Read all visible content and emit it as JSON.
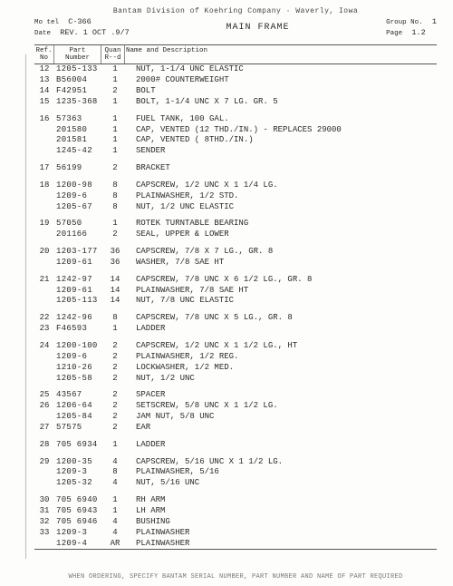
{
  "document": {
    "banner": "Bantam   Division of Koehring Company  ·  Waverly, Iowa",
    "model_label": "Mo tel",
    "model": "C-366",
    "date_label": "Date",
    "date": "REV. 1 OCT  .9/7",
    "title": "MAIN FRAME",
    "group_no_label": "Group No.",
    "group_no": "1",
    "page_label": "Page",
    "page": "1.2"
  },
  "columns": {
    "ref": "Ref.\nNo",
    "part": "Part\nNumber",
    "qty": "Quan\nR--d",
    "desc": "Name and Description"
  },
  "groups": [
    [
      {
        "ref": "12",
        "part": "1205-133",
        "qty": "1",
        "desc": "Nut, 1-1/4 UNC elastic"
      },
      {
        "ref": "13",
        "part": "B56004",
        "qty": "1",
        "desc": "2000# Counterweight"
      },
      {
        "ref": "14",
        "part": "F42951",
        "qty": "2",
        "desc": "Bolt"
      },
      {
        "ref": "15",
        "part": "1235-368",
        "qty": "1",
        "desc": "Bolt, 1-1/4 UNC x 7 lg. Gr. 5"
      }
    ],
    [
      {
        "ref": "16",
        "part": "57363",
        "qty": "1",
        "desc": "Fuel tank, 100 gal."
      },
      {
        "ref": "",
        "part": "201580",
        "qty": "1",
        "desc": "  Cap, vented (12 thd./in.) - Replaces 29000"
      },
      {
        "ref": "",
        "part": "201581",
        "qty": "1",
        "desc": "  Cap, vented ( 8thd./in.)"
      },
      {
        "ref": "",
        "part": "1245-42",
        "qty": "1",
        "desc": "  Sender"
      }
    ],
    [
      {
        "ref": "17",
        "part": "56199",
        "qty": "2",
        "desc": "Bracket"
      }
    ],
    [
      {
        "ref": "18",
        "part": "1200-98",
        "qty": "8",
        "desc": "Capscrew, 1/2 UNC x 1 1/4 lg."
      },
      {
        "ref": "",
        "part": "1209-6",
        "qty": "8",
        "desc": "Plainwasher, 1/2 std."
      },
      {
        "ref": "",
        "part": "1205-67",
        "qty": "8",
        "desc": "Nut, 1/2 UNC elastic"
      }
    ],
    [
      {
        "ref": "19",
        "part": "57050",
        "qty": "1",
        "desc": "Rotek turntable bearing"
      },
      {
        "ref": "",
        "part": "201166",
        "qty": "2",
        "desc": "  Seal, upper & lower"
      }
    ],
    [
      {
        "ref": "20",
        "part": "1203-177",
        "qty": "36",
        "desc": "Capscrew, 7/8 x 7 lg., Gr. 8"
      },
      {
        "ref": "",
        "part": "1209-61",
        "qty": "36",
        "desc": "Washer, 7/8 SAE HT"
      }
    ],
    [
      {
        "ref": "21",
        "part": "1242-97",
        "qty": "14",
        "desc": "Capscrew, 7/8 UNC x 6 1/2 lg., Gr. 8"
      },
      {
        "ref": "",
        "part": "1209-61",
        "qty": "14",
        "desc": "Plainwasher, 7/8 SAE HT"
      },
      {
        "ref": "",
        "part": "1205-113",
        "qty": "14",
        "desc": "Nut, 7/8 UNC elastic"
      }
    ],
    [
      {
        "ref": "22",
        "part": "1242-96",
        "qty": "8",
        "desc": "Capscrew, 7/8 UNC x 5 lg., Gr. 8"
      },
      {
        "ref": "23",
        "part": "F46593",
        "qty": "1",
        "desc": "Ladder"
      }
    ],
    [
      {
        "ref": "24",
        "part": "1200-100",
        "qty": "2",
        "desc": "Capscrew, 1/2 UNC x 1 1/2 lg., HT"
      },
      {
        "ref": "",
        "part": "1209-6",
        "qty": "2",
        "desc": "Plainwasher, 1/2 reg."
      },
      {
        "ref": "",
        "part": "1210-26",
        "qty": "2",
        "desc": "Lockwasher, 1/2 med."
      },
      {
        "ref": "",
        "part": "1205-58",
        "qty": "2",
        "desc": "Nut, 1/2 UNC"
      }
    ],
    [
      {
        "ref": "25",
        "part": "43567",
        "qty": "2",
        "desc": "Spacer"
      },
      {
        "ref": "26",
        "part": "1206-64",
        "qty": "2",
        "desc": "Setscrew, 5/8 UNC x 1 1/2 lg."
      },
      {
        "ref": "",
        "part": "1205-84",
        "qty": "2",
        "desc": "Jam nut, 5/8 UNC"
      },
      {
        "ref": "27",
        "part": "57575",
        "qty": "2",
        "desc": "Ear"
      }
    ],
    [
      {
        "ref": "28",
        "part": "705 6934",
        "qty": "1",
        "desc": "Ladder"
      }
    ],
    [
      {
        "ref": "29",
        "part": "1200-35",
        "qty": "4",
        "desc": "Capscrew, 5/16 UNC x 1 1/2 lg."
      },
      {
        "ref": "",
        "part": "1209-3",
        "qty": "8",
        "desc": "Plainwasher, 5/16"
      },
      {
        "ref": "",
        "part": "1205-32",
        "qty": "4",
        "desc": "Nut, 5/16 UNC"
      }
    ],
    [
      {
        "ref": "30",
        "part": "705 6940",
        "qty": "1",
        "desc": "RH arm"
      },
      {
        "ref": "31",
        "part": "705 6943",
        "qty": "1",
        "desc": "LH arm"
      },
      {
        "ref": "32",
        "part": "705 6946",
        "qty": "4",
        "desc": "Bushing"
      },
      {
        "ref": "33",
        "part": "1209-3",
        "qty": "4",
        "desc": "Plainwasher"
      },
      {
        "ref": "",
        "part": "1209-4",
        "qty": "AR",
        "desc": "Plainwasher"
      }
    ]
  ],
  "footer": "WHEN ORDERING, SPECIFY BANTAM SERIAL NUMBER, PART NUMBER AND NAME OF PART REQUIRED"
}
